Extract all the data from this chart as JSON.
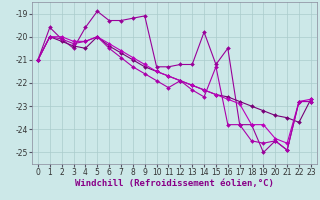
{
  "xlabel": "Windchill (Refroidissement éolien,°C)",
  "x": [
    0,
    1,
    2,
    3,
    4,
    5,
    6,
    7,
    8,
    9,
    10,
    11,
    12,
    13,
    14,
    15,
    16,
    17,
    18,
    19,
    20,
    21,
    22,
    23
  ],
  "lines": [
    {
      "y": [
        -21.0,
        -19.6,
        -20.1,
        -20.5,
        -19.6,
        -18.9,
        -19.3,
        -19.3,
        -19.2,
        -19.1,
        -21.3,
        -21.3,
        -21.2,
        -21.2,
        -19.8,
        -21.2,
        -20.5,
        -23.8,
        -23.8,
        -25.0,
        -24.5,
        -24.9,
        -22.8,
        -22.8
      ],
      "color": "#990099",
      "lw": 0.8,
      "ls": "-",
      "marker": "D",
      "ms": 2.0
    },
    {
      "y": [
        -21.0,
        -20.0,
        -20.2,
        -20.4,
        -20.5,
        -20.0,
        -20.4,
        -20.7,
        -21.0,
        -21.3,
        -21.5,
        -21.7,
        -21.9,
        -22.1,
        -22.3,
        -22.5,
        -22.6,
        -22.8,
        -23.0,
        -23.2,
        -23.4,
        -23.5,
        -23.7,
        -22.7
      ],
      "color": "#770077",
      "lw": 0.8,
      "ls": "-",
      "marker": "D",
      "ms": 2.0
    },
    {
      "y": [
        -21.0,
        -20.0,
        -20.0,
        -20.2,
        -20.2,
        -20.0,
        -20.3,
        -20.6,
        -20.9,
        -21.2,
        -21.5,
        -21.7,
        -21.9,
        -22.1,
        -22.3,
        -22.5,
        -22.7,
        -22.9,
        -23.8,
        -23.8,
        -24.4,
        -24.6,
        -22.8,
        -22.7
      ],
      "color": "#bb00bb",
      "lw": 0.8,
      "ls": "-",
      "marker": "D",
      "ms": 2.0
    },
    {
      "y": [
        -21.0,
        -20.0,
        -20.1,
        -20.3,
        -20.2,
        -20.0,
        -20.5,
        -20.9,
        -21.3,
        -21.6,
        -21.9,
        -22.2,
        -21.9,
        -22.3,
        -22.6,
        -21.3,
        -23.8,
        -23.8,
        -24.5,
        -24.6,
        -24.5,
        -24.9,
        -22.8,
        -22.8
      ],
      "color": "#aa00aa",
      "lw": 0.8,
      "ls": "-",
      "marker": "D",
      "ms": 2.0
    }
  ],
  "ylim": [
    -25.5,
    -18.5
  ],
  "yticks": [
    -25,
    -24,
    -23,
    -22,
    -21,
    -20,
    -19
  ],
  "xticks": [
    0,
    1,
    2,
    3,
    4,
    5,
    6,
    7,
    8,
    9,
    10,
    11,
    12,
    13,
    14,
    15,
    16,
    17,
    18,
    19,
    20,
    21,
    22,
    23
  ],
  "bg_color": "#cce8e8",
  "grid_color": "#aacccc",
  "tick_fontsize": 5.5,
  "xlabel_fontsize": 6.5,
  "line_color": "#880088"
}
